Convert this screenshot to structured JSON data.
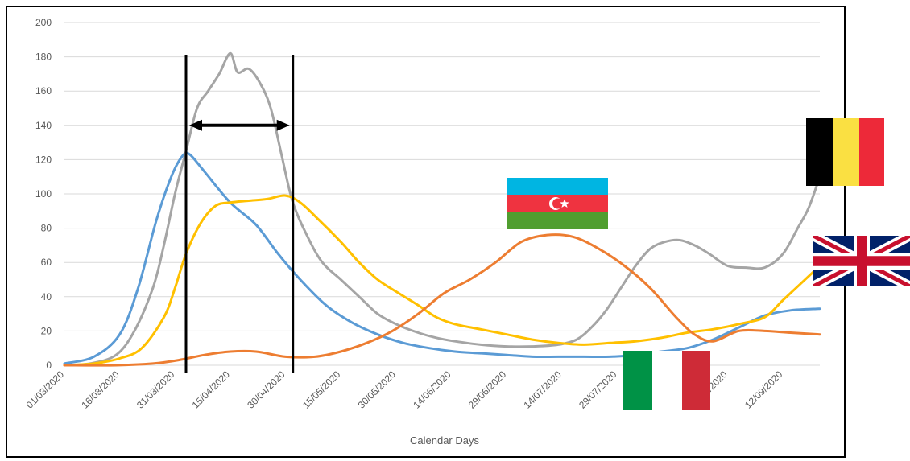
{
  "chart_data": {
    "type": "line",
    "title": "",
    "xlabel": "Calendar Days",
    "ylabel": "",
    "ylim": [
      0,
      200
    ],
    "yticks": [
      0,
      20,
      40,
      60,
      80,
      100,
      120,
      140,
      160,
      180,
      200
    ],
    "x_tick_labels": [
      "01/03/2020",
      "16/03/2020",
      "31/03/2020",
      "15/04/2020",
      "30/04/2020",
      "15/05/2020",
      "30/05/2020",
      "14/06/2020",
      "29/06/2020",
      "14/07/2020",
      "29/07/2020",
      "13/08/2020",
      "28/08/2020",
      "12/09/2020"
    ],
    "x_start": "01/03/2020",
    "x_end": "22/09/2020",
    "grid": true,
    "legend": "flag icons at right side",
    "series": [
      {
        "flag": "italy",
        "color": "#5b9bd5",
        "points": [
          [
            "01/03/2020",
            1
          ],
          [
            "09/03/2020",
            5
          ],
          [
            "16/03/2020",
            18
          ],
          [
            "21/03/2020",
            45
          ],
          [
            "26/03/2020",
            85
          ],
          [
            "30/03/2020",
            110
          ],
          [
            "02/04/2020",
            122
          ],
          [
            "04/04/2020",
            123
          ],
          [
            "08/04/2020",
            113
          ],
          [
            "15/04/2020",
            95
          ],
          [
            "22/04/2020",
            82
          ],
          [
            "28/04/2020",
            65
          ],
          [
            "04/05/2020",
            50
          ],
          [
            "11/05/2020",
            35
          ],
          [
            "18/05/2020",
            25
          ],
          [
            "25/05/2020",
            18
          ],
          [
            "01/06/2020",
            13
          ],
          [
            "08/06/2020",
            10
          ],
          [
            "15/06/2020",
            8
          ],
          [
            "22/06/2020",
            7
          ],
          [
            "29/06/2020",
            6
          ],
          [
            "06/07/2020",
            5
          ],
          [
            "13/07/2020",
            5
          ],
          [
            "20/07/2020",
            5
          ],
          [
            "27/07/2020",
            5
          ],
          [
            "03/08/2020",
            6
          ],
          [
            "10/08/2020",
            8
          ],
          [
            "17/08/2020",
            10
          ],
          [
            "24/08/2020",
            15
          ],
          [
            "31/08/2020",
            22
          ],
          [
            "07/09/2020",
            29
          ],
          [
            "14/09/2020",
            32
          ],
          [
            "22/09/2020",
            33
          ]
        ]
      },
      {
        "flag": "belgium",
        "color": "#a5a5a5",
        "points": [
          [
            "01/03/2020",
            0
          ],
          [
            "08/03/2020",
            1
          ],
          [
            "15/03/2020",
            6
          ],
          [
            "20/03/2020",
            20
          ],
          [
            "25/03/2020",
            45
          ],
          [
            "28/03/2020",
            70
          ],
          [
            "31/03/2020",
            100
          ],
          [
            "03/04/2020",
            125
          ],
          [
            "06/04/2020",
            150
          ],
          [
            "09/04/2020",
            160
          ],
          [
            "12/04/2020",
            170
          ],
          [
            "15/04/2020",
            182
          ],
          [
            "17/04/2020",
            171
          ],
          [
            "20/04/2020",
            173
          ],
          [
            "23/04/2020",
            165
          ],
          [
            "26/04/2020",
            150
          ],
          [
            "29/04/2020",
            122
          ],
          [
            "02/05/2020",
            95
          ],
          [
            "06/05/2020",
            75
          ],
          [
            "10/05/2020",
            60
          ],
          [
            "15/05/2020",
            50
          ],
          [
            "20/05/2020",
            40
          ],
          [
            "25/05/2020",
            30
          ],
          [
            "30/05/2020",
            24
          ],
          [
            "05/06/2020",
            19
          ],
          [
            "10/06/2020",
            16
          ],
          [
            "15/06/2020",
            14
          ],
          [
            "22/06/2020",
            12
          ],
          [
            "29/06/2020",
            11
          ],
          [
            "06/07/2020",
            11
          ],
          [
            "13/07/2020",
            12
          ],
          [
            "18/07/2020",
            15
          ],
          [
            "22/07/2020",
            22
          ],
          [
            "26/07/2020",
            32
          ],
          [
            "30/07/2020",
            45
          ],
          [
            "03/08/2020",
            58
          ],
          [
            "07/08/2020",
            68
          ],
          [
            "11/08/2020",
            72
          ],
          [
            "15/08/2020",
            73
          ],
          [
            "19/08/2020",
            70
          ],
          [
            "23/08/2020",
            65
          ],
          [
            "28/08/2020",
            58
          ],
          [
            "02/09/2020",
            57
          ],
          [
            "07/09/2020",
            57
          ],
          [
            "12/09/2020",
            65
          ],
          [
            "16/09/2020",
            80
          ],
          [
            "19/09/2020",
            92
          ],
          [
            "22/09/2020",
            110
          ]
        ]
      },
      {
        "flag": "uk",
        "color": "#ffc000",
        "points": [
          [
            "01/03/2020",
            0
          ],
          [
            "09/03/2020",
            1
          ],
          [
            "16/03/2020",
            4
          ],
          [
            "22/03/2020",
            10
          ],
          [
            "28/03/2020",
            28
          ],
          [
            "31/03/2020",
            45
          ],
          [
            "03/04/2020",
            65
          ],
          [
            "07/04/2020",
            83
          ],
          [
            "11/04/2020",
            93
          ],
          [
            "15/04/2020",
            95
          ],
          [
            "20/04/2020",
            96
          ],
          [
            "25/04/2020",
            97
          ],
          [
            "30/04/2020",
            99
          ],
          [
            "04/05/2020",
            95
          ],
          [
            "09/05/2020",
            85
          ],
          [
            "15/05/2020",
            72
          ],
          [
            "20/05/2020",
            60
          ],
          [
            "25/05/2020",
            50
          ],
          [
            "30/05/2020",
            43
          ],
          [
            "05/06/2020",
            35
          ],
          [
            "10/06/2020",
            28
          ],
          [
            "15/06/2020",
            24
          ],
          [
            "22/06/2020",
            21
          ],
          [
            "29/06/2020",
            18
          ],
          [
            "06/07/2020",
            15
          ],
          [
            "13/07/2020",
            13
          ],
          [
            "20/07/2020",
            12
          ],
          [
            "27/07/2020",
            13
          ],
          [
            "03/08/2020",
            14
          ],
          [
            "10/08/2020",
            16
          ],
          [
            "17/08/2020",
            19
          ],
          [
            "24/08/2020",
            21
          ],
          [
            "31/08/2020",
            24
          ],
          [
            "07/09/2020",
            28
          ],
          [
            "12/09/2020",
            38
          ],
          [
            "17/09/2020",
            48
          ],
          [
            "22/09/2020",
            58
          ]
        ]
      },
      {
        "flag": "azerbaijan",
        "color": "#ed7d31",
        "points": [
          [
            "01/03/2020",
            0
          ],
          [
            "15/03/2020",
            0
          ],
          [
            "25/03/2020",
            1
          ],
          [
            "01/04/2020",
            3
          ],
          [
            "08/04/2020",
            6
          ],
          [
            "15/04/2020",
            8
          ],
          [
            "22/04/2020",
            8
          ],
          [
            "30/04/2020",
            5
          ],
          [
            "08/05/2020",
            5
          ],
          [
            "15/05/2020",
            8
          ],
          [
            "22/05/2020",
            13
          ],
          [
            "29/05/2020",
            20
          ],
          [
            "05/06/2020",
            30
          ],
          [
            "12/06/2020",
            42
          ],
          [
            "19/06/2020",
            50
          ],
          [
            "26/06/2020",
            60
          ],
          [
            "03/07/2020",
            72
          ],
          [
            "10/07/2020",
            76
          ],
          [
            "17/07/2020",
            75
          ],
          [
            "24/07/2020",
            68
          ],
          [
            "31/07/2020",
            58
          ],
          [
            "07/08/2020",
            45
          ],
          [
            "14/08/2020",
            28
          ],
          [
            "19/08/2020",
            18
          ],
          [
            "24/08/2020",
            14
          ],
          [
            "31/08/2020",
            20
          ],
          [
            "07/09/2020",
            20
          ],
          [
            "14/09/2020",
            19
          ],
          [
            "22/09/2020",
            18
          ]
        ]
      }
    ],
    "annotations": {
      "vertical_lines": [
        "03/04/2020",
        "02/05/2020"
      ],
      "double_arrow": {
        "from": "03/04/2020",
        "to": "02/05/2020",
        "y": 140
      }
    }
  },
  "flags": [
    {
      "name": "belgium",
      "colors": [
        "#000000",
        "#fae042",
        "#ed2939"
      ]
    },
    {
      "name": "uk",
      "colors": [
        "#012169",
        "#ffffff",
        "#c8102e"
      ]
    },
    {
      "name": "azerbaijan",
      "colors": [
        "#00b5e2",
        "#ef3340",
        "#509e2f"
      ]
    },
    {
      "name": "italy",
      "colors": [
        "#009246",
        "#ffffff",
        "#ce2b37"
      ]
    }
  ]
}
